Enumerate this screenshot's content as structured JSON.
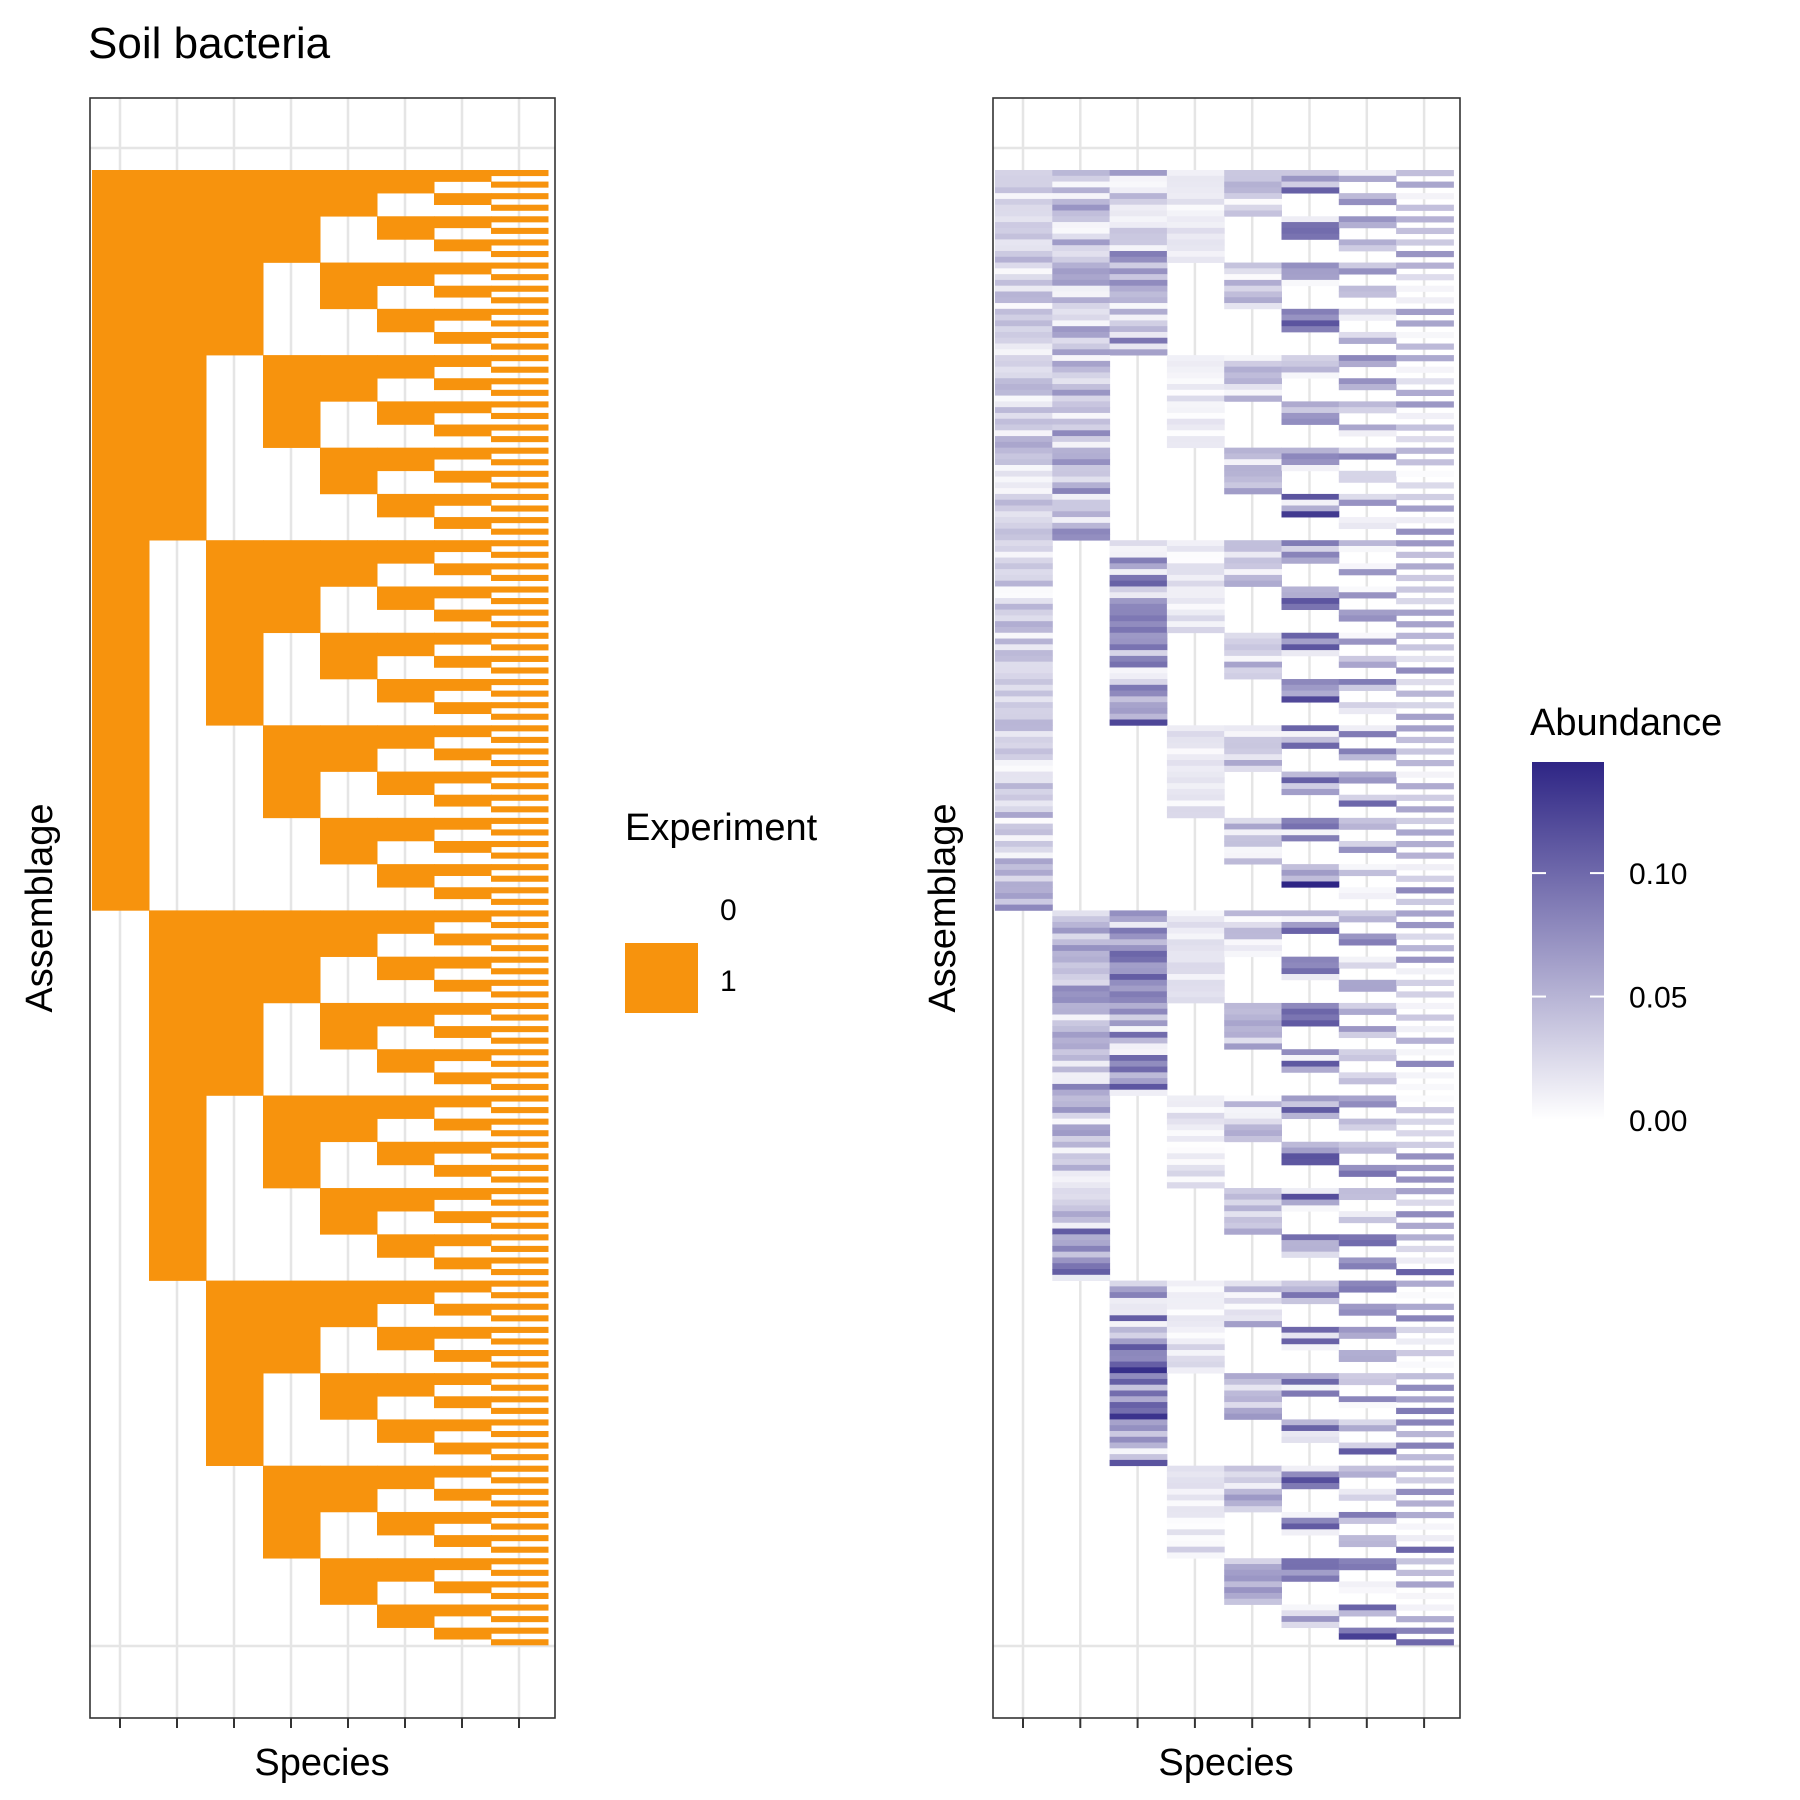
{
  "title": "Soil bacteria",
  "colors": {
    "presence": "#F7930D",
    "abundance_low": "#FFFFFF",
    "abundance_high": "#2E2585",
    "panel_border": "#333333",
    "grid": "#E5E5E5",
    "tick": "#333333"
  },
  "chart_data": [
    {
      "type": "heatmap",
      "title": "Soil bacteria",
      "xlabel": "Species",
      "ylabel": "Assemblage",
      "n_species": 8,
      "n_assemblages": 255,
      "cell_encoding": "binary",
      "rule": "every assemblage row lists one non-empty subset of the 8 species, sorted by binary pattern (species 1 = highest bit) in descending order; 1 = species present in the experiment",
      "legend": {
        "title": "Experiment",
        "position": "right",
        "entries": [
          {
            "label": "0",
            "color": "#FFFFFF"
          },
          {
            "label": "1",
            "color": "#F7930D"
          }
        ]
      }
    },
    {
      "type": "heatmap",
      "xlabel": "Species",
      "ylabel": "Assemblage",
      "n_species": 8,
      "n_assemblages": 255,
      "cell_encoding": "continuous",
      "species_mean_abundance": [
        0.04,
        0.06,
        0.08,
        0.02,
        0.045,
        0.09,
        0.07,
        0.06
      ],
      "value_range": [
        0.0,
        0.145
      ],
      "legend": {
        "title": "Abundance",
        "position": "right",
        "type": "colorbar",
        "ticks": [
          {
            "value": 0.0,
            "label": "0.00"
          },
          {
            "value": 0.05,
            "label": "0.05"
          },
          {
            "value": 0.1,
            "label": "0.10"
          }
        ]
      }
    }
  ]
}
